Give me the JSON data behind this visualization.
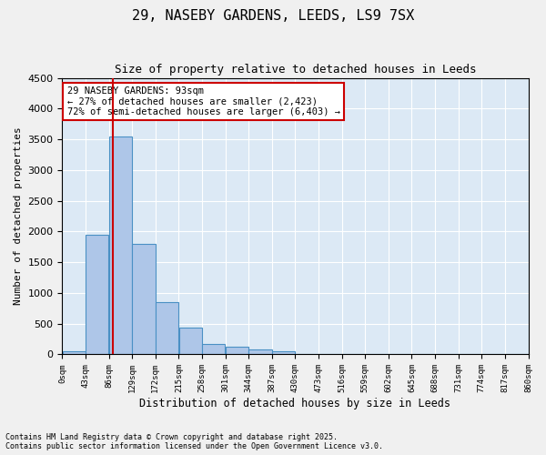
{
  "title_line1": "29, NASEBY GARDENS, LEEDS, LS9 7SX",
  "title_line2": "Size of property relative to detached houses in Leeds",
  "xlabel": "Distribution of detached houses by size in Leeds",
  "ylabel": "Number of detached properties",
  "annotation_line1": "29 NASEBY GARDENS: 93sqm",
  "annotation_line2": "← 27% of detached houses are smaller (2,423)",
  "annotation_line3": "72% of semi-detached houses are larger (6,403) →",
  "property_size_sqm": 93,
  "bin_edges": [
    0,
    43,
    86,
    129,
    172,
    215,
    258,
    301,
    344,
    387,
    430,
    473,
    516,
    559,
    602,
    645,
    688,
    731,
    774,
    817,
    860
  ],
  "bar_heights": [
    50,
    1950,
    3550,
    1800,
    850,
    430,
    175,
    120,
    80,
    55,
    0,
    0,
    0,
    0,
    0,
    0,
    0,
    0,
    0,
    0
  ],
  "bar_color": "#aec6e8",
  "bar_edge_color": "#4a90c4",
  "vline_color": "#cc0000",
  "vline_x": 93,
  "annotation_box_color": "#cc0000",
  "background_color": "#dce9f5",
  "grid_color": "#ffffff",
  "ylim": [
    0,
    4500
  ],
  "yticks": [
    0,
    500,
    1000,
    1500,
    2000,
    2500,
    3000,
    3500,
    4000,
    4500
  ],
  "footer_line1": "Contains HM Land Registry data © Crown copyright and database right 2025.",
  "footer_line2": "Contains public sector information licensed under the Open Government Licence v3.0."
}
